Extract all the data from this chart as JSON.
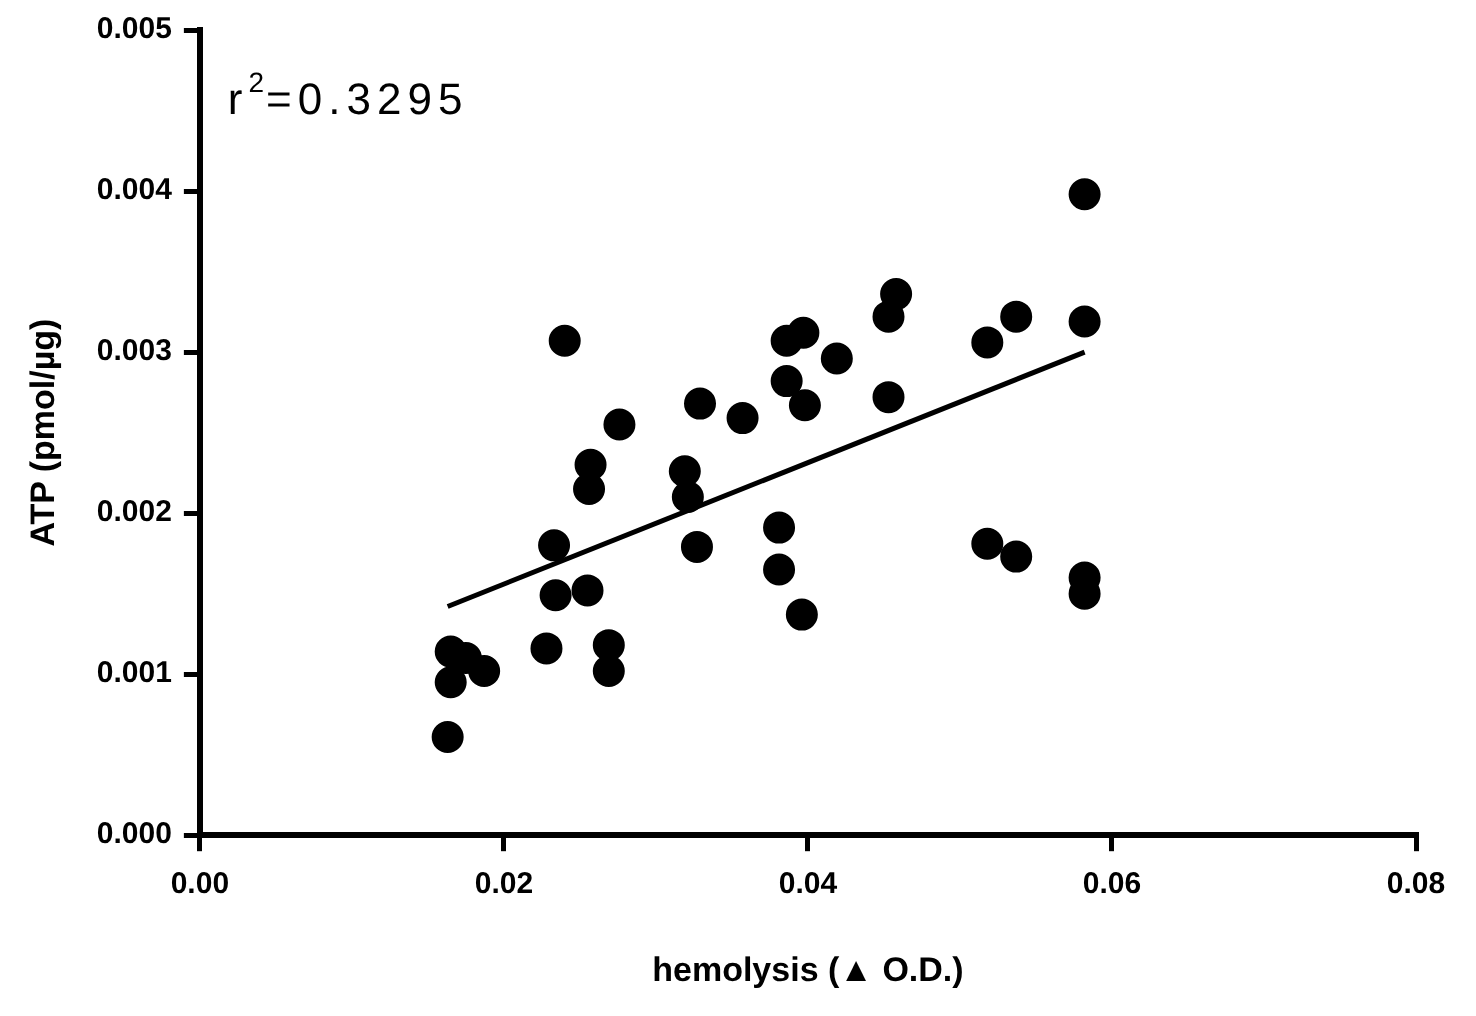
{
  "chart_data": {
    "type": "scatter",
    "xlabel": "hemolysis (▲ O.D.)",
    "ylabel": "ATP (pmol/µg)",
    "annotations": [
      "r$^{2}$=0.3295"
    ],
    "xlim": [
      0,
      0.08
    ],
    "xticks": [
      {
        "value": 0,
        "label": "0.00"
      },
      {
        "value": 0.02,
        "label": "0.02"
      },
      {
        "value": 0.04,
        "label": "0.04"
      },
      {
        "value": 0.06,
        "label": "0.06"
      },
      {
        "value": 0.08,
        "label": "0.08"
      }
    ],
    "ylim": [
      0,
      0.005
    ],
    "yticks": [
      {
        "value": 0,
        "label": "0.000"
      },
      {
        "value": 0.001,
        "label": "0.001"
      },
      {
        "value": 0.002,
        "label": "0.002"
      },
      {
        "value": 0.003,
        "label": "0.003"
      },
      {
        "value": 0.004,
        "label": "0.004"
      },
      {
        "value": 0.005,
        "label": "0.005"
      }
    ],
    "grid": false,
    "legend": false,
    "marker": "circle",
    "series": [
      {
        "color": "#000000",
        "x": [
          0.024,
          0.0276,
          0.0257,
          0.0256,
          0.0233,
          0.0329,
          0.0357,
          0.0319,
          0.0321,
          0.0327,
          0.0381,
          0.0381,
          0.0386,
          0.0397,
          0.0386,
          0.0398,
          0.0419,
          0.0453,
          0.0453,
          0.0458,
          0.0396,
          0.0234,
          0.0255,
          0.0228,
          0.0269,
          0.0269,
          0.0165,
          0.0165,
          0.0187,
          0.0163,
          0.0175,
          0.0518,
          0.0537,
          0.0518,
          0.0537,
          0.0582,
          0.0582,
          0.0582,
          0.0582
        ],
        "values": [
          0.00307,
          0.00255,
          0.0023,
          0.00215,
          0.0018,
          0.00268,
          0.00259,
          0.00226,
          0.0021,
          0.00179,
          0.00191,
          0.00165,
          0.00307,
          0.00312,
          0.00282,
          0.00267,
          0.00296,
          0.00272,
          0.00322,
          0.00336,
          0.00137,
          0.00149,
          0.00152,
          0.00116,
          0.00118,
          0.00102,
          0.00114,
          0.00095,
          0.00102,
          0.00061,
          0.0011,
          0.00306,
          0.00322,
          0.00181,
          0.00173,
          0.00398,
          0.00319,
          0.0016,
          0.0015
        ]
      },
      {
        "type": "line",
        "color": "#000000",
        "x": [
          0.0163,
          0.0582
        ],
        "values": [
          0.00142,
          0.003
        ],
        "line_style": "solid",
        "marker": "none"
      }
    ]
  }
}
